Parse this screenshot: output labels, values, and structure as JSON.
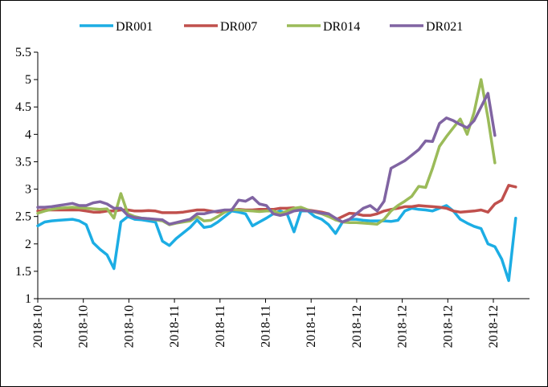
{
  "colors": {
    "DR001": "#1CADE4",
    "DR007": "#C0504D",
    "DR014": "#9BBB59",
    "DR021": "#8064A2"
  },
  "chart_data": {
    "type": "line",
    "title": "",
    "xlabel": "",
    "ylabel": "",
    "ylim": [
      1,
      5.5
    ],
    "yticks": [
      "1",
      "1.5",
      "2",
      "2.5",
      "3",
      "3.5",
      "4",
      "4.5",
      "5",
      "5.5"
    ],
    "xticks": [
      "2018-10",
      "2018-10",
      "2018-10",
      "2018-11",
      "2018-11",
      "2018-11",
      "2018-11",
      "2018-12",
      "2018-12",
      "2018-12",
      "2018-12"
    ],
    "legend_position": "top",
    "grid": false,
    "x": [
      0,
      1,
      2,
      3,
      4,
      5,
      6,
      7,
      8,
      9,
      10,
      11,
      12,
      13,
      14,
      15,
      16,
      17,
      18,
      19,
      20,
      21,
      22,
      23,
      24,
      25,
      26,
      27,
      28,
      29,
      30,
      31,
      32,
      33,
      34,
      35,
      36,
      37,
      38,
      39,
      40,
      41,
      42,
      43,
      44,
      45,
      46,
      47,
      48,
      49,
      50,
      51,
      52,
      53,
      54,
      55,
      56,
      57,
      58,
      59,
      60,
      61,
      62,
      63,
      64,
      65,
      66,
      67,
      68,
      69,
      70
    ],
    "series": [
      {
        "name": "DR001",
        "values": [
          2.33,
          2.4,
          2.42,
          2.43,
          2.44,
          2.45,
          2.42,
          2.35,
          2.02,
          1.9,
          1.8,
          1.55,
          2.4,
          2.5,
          2.45,
          2.44,
          2.42,
          2.4,
          2.05,
          1.97,
          2.1,
          2.2,
          2.3,
          2.44,
          2.3,
          2.32,
          2.4,
          2.5,
          2.6,
          2.58,
          2.55,
          2.33,
          2.4,
          2.47,
          2.55,
          2.6,
          2.55,
          2.22,
          2.6,
          2.6,
          2.5,
          2.45,
          2.35,
          2.19,
          2.4,
          2.45,
          2.45,
          2.43,
          2.42,
          2.42,
          2.42,
          2.41,
          2.43,
          2.6,
          2.65,
          2.63,
          2.62,
          2.6,
          2.65,
          2.7,
          2.6,
          2.45,
          2.38,
          2.32,
          2.28,
          2.0,
          1.95,
          1.72,
          1.33,
          2.47,
          null
        ]
      },
      {
        "name": "DR007",
        "values": [
          2.6,
          2.62,
          2.62,
          2.62,
          2.62,
          2.62,
          2.62,
          2.6,
          2.58,
          2.58,
          2.6,
          2.6,
          2.62,
          2.62,
          2.6,
          2.6,
          2.61,
          2.6,
          2.57,
          2.57,
          2.57,
          2.58,
          2.6,
          2.62,
          2.62,
          2.6,
          2.58,
          2.6,
          2.62,
          2.63,
          2.62,
          2.62,
          2.63,
          2.63,
          2.63,
          2.65,
          2.65,
          2.66,
          2.63,
          2.62,
          2.6,
          2.58,
          2.55,
          2.44,
          2.5,
          2.56,
          2.55,
          2.52,
          2.52,
          2.55,
          2.6,
          2.63,
          2.65,
          2.68,
          2.68,
          2.7,
          2.69,
          2.68,
          2.67,
          2.65,
          2.6,
          2.58,
          2.59,
          2.6,
          2.62,
          2.58,
          2.73,
          2.8,
          3.07,
          3.04,
          null
        ]
      },
      {
        "name": "DR014",
        "values": [
          2.56,
          2.6,
          2.63,
          2.65,
          2.66,
          2.67,
          2.66,
          2.65,
          2.64,
          2.63,
          2.64,
          2.47,
          2.92,
          2.55,
          2.5,
          2.47,
          2.46,
          2.44,
          2.42,
          2.35,
          2.38,
          2.4,
          2.42,
          2.5,
          2.42,
          2.43,
          2.5,
          2.58,
          2.63,
          2.62,
          2.61,
          2.6,
          2.59,
          2.6,
          2.6,
          2.55,
          2.6,
          2.65,
          2.67,
          2.62,
          2.58,
          2.55,
          2.5,
          2.44,
          2.4,
          2.39,
          2.39,
          2.38,
          2.37,
          2.36,
          2.45,
          2.6,
          2.7,
          2.78,
          2.87,
          3.05,
          3.03,
          3.38,
          3.78,
          3.96,
          4.12,
          4.28,
          4.0,
          4.4,
          5.0,
          4.3,
          3.48,
          null,
          null,
          null,
          null
        ]
      },
      {
        "name": "DR021",
        "values": [
          2.67,
          2.67,
          2.68,
          2.7,
          2.72,
          2.74,
          2.7,
          2.7,
          2.75,
          2.77,
          2.73,
          2.65,
          2.65,
          2.52,
          2.48,
          2.47,
          2.46,
          2.45,
          2.44,
          2.36,
          2.39,
          2.42,
          2.45,
          2.55,
          2.55,
          2.58,
          2.6,
          2.62,
          2.62,
          2.8,
          2.78,
          2.85,
          2.73,
          2.7,
          2.55,
          2.52,
          2.55,
          2.6,
          2.62,
          2.6,
          2.59,
          2.56,
          2.55,
          2.47,
          2.4,
          2.45,
          2.55,
          2.65,
          2.7,
          2.6,
          2.78,
          3.38,
          3.45,
          3.52,
          3.62,
          3.72,
          3.88,
          3.87,
          4.2,
          4.3,
          4.25,
          4.18,
          4.12,
          4.25,
          4.5,
          4.75,
          3.98,
          null,
          null,
          null,
          null
        ]
      }
    ]
  }
}
